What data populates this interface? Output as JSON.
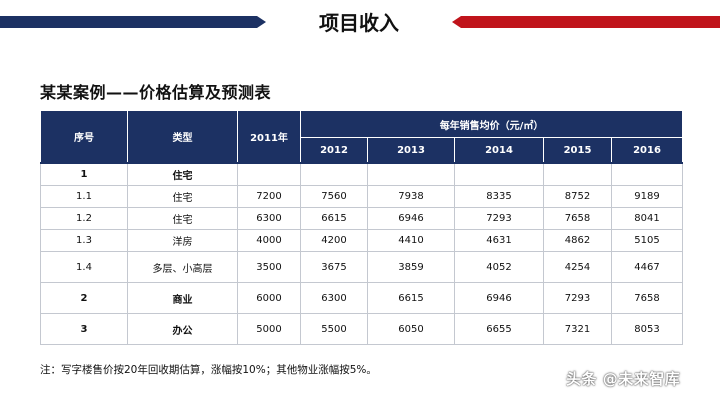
{
  "header": {
    "title": "项目收入"
  },
  "section": {
    "title": "某某案例——价格估算及预测表"
  },
  "table": {
    "col_headers": {
      "seq": "序号",
      "type": "类型",
      "base_year": "2011年",
      "group": "每年销售均价（元/㎡）"
    },
    "years": [
      "2012",
      "2013",
      "2014",
      "2015",
      "2016"
    ],
    "rows": [
      {
        "seq": "1",
        "type": "住宅",
        "base": "",
        "values": [
          "",
          "",
          "",
          "",
          ""
        ]
      },
      {
        "seq": "1.1",
        "type": "住宅",
        "base": "7200",
        "values": [
          "7560",
          "7938",
          "8335",
          "8752",
          "9189"
        ]
      },
      {
        "seq": "1.2",
        "type": "住宅",
        "base": "6300",
        "values": [
          "6615",
          "6946",
          "7293",
          "7658",
          "8041"
        ]
      },
      {
        "seq": "1.3",
        "type": "洋房",
        "base": "4000",
        "values": [
          "4200",
          "4410",
          "4631",
          "4862",
          "5105"
        ]
      },
      {
        "seq": "1.4",
        "type": "多层、小高层",
        "base": "3500",
        "values": [
          "3675",
          "3859",
          "4052",
          "4254",
          "4467"
        ]
      },
      {
        "seq": "2",
        "type": "商业",
        "base": "6000",
        "values": [
          "6300",
          "6615",
          "6946",
          "7293",
          "7658"
        ]
      },
      {
        "seq": "3",
        "type": "办公",
        "base": "5000",
        "values": [
          "5500",
          "6050",
          "6655",
          "7321",
          "8053"
        ]
      }
    ]
  },
  "footnote": "注：写字楼售价按20年回收期估算，涨幅按10%；其他物业涨幅按5%。",
  "watermark": "头条 @未来智库",
  "colors": {
    "navy": "#1c3163",
    "red": "#c0141b"
  }
}
